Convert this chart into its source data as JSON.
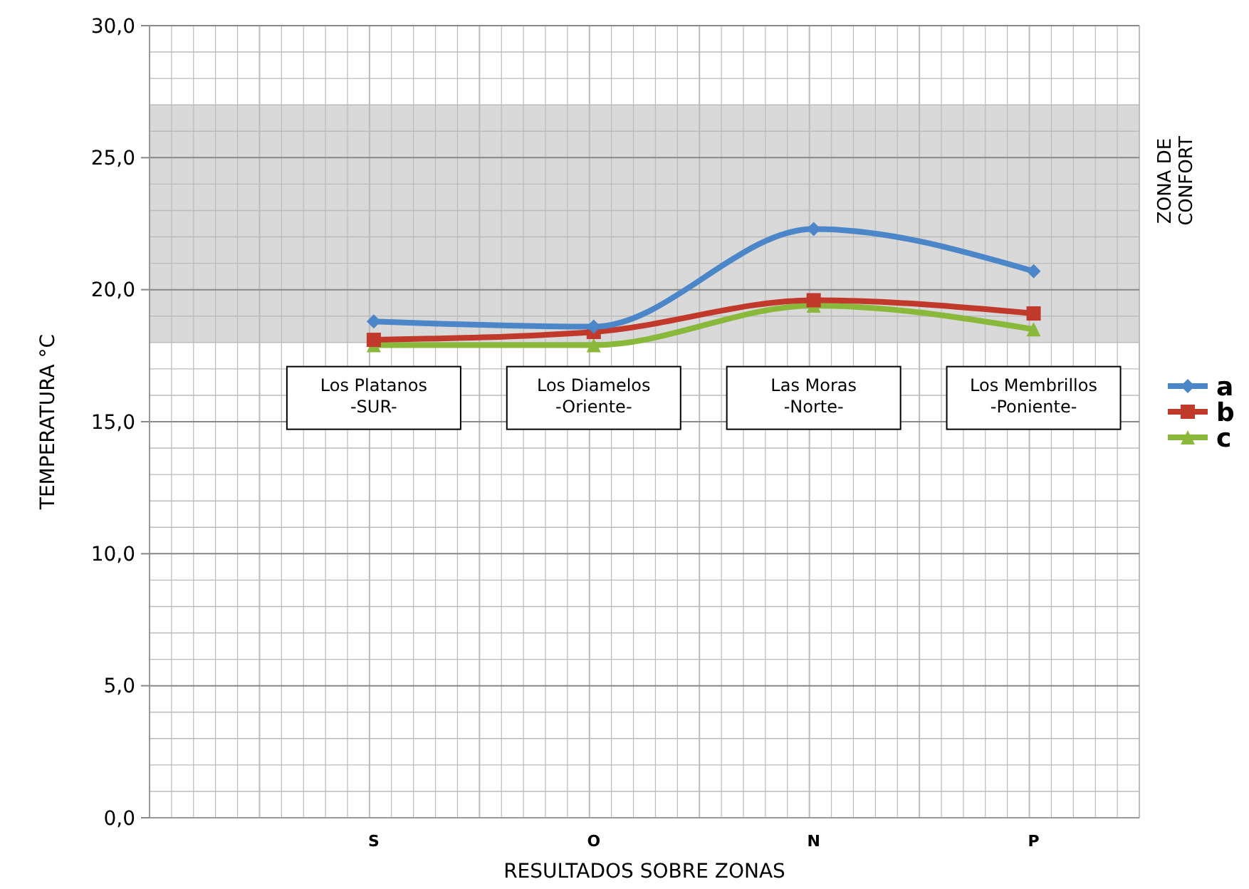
{
  "chart_data": {
    "type": "line",
    "xlabel": "RESULTADOS SOBRE ZONAS",
    "ylabel": "TEMPERATURA °C",
    "categories": [
      "S",
      "O",
      "N",
      "P"
    ],
    "series": [
      {
        "name": "a",
        "color": "#4a86c8",
        "values": [
          18.8,
          18.6,
          22.3,
          20.7
        ],
        "marker": "diamond"
      },
      {
        "name": "b",
        "color": "#c0392b",
        "values": [
          18.1,
          18.4,
          19.6,
          19.1
        ],
        "marker": "square"
      },
      {
        "name": "c",
        "color": "#8ab83a",
        "values": [
          17.9,
          17.9,
          19.4,
          18.5
        ],
        "marker": "triangle"
      }
    ],
    "ylim": [
      0,
      30
    ],
    "yticks": [
      {
        "value": 0,
        "label": "0,0"
      },
      {
        "value": 5,
        "label": "5,0"
      },
      {
        "value": 10,
        "label": "10,0"
      },
      {
        "value": 15,
        "label": "15,0"
      },
      {
        "value": 20,
        "label": "20,0"
      },
      {
        "value": 25,
        "label": "25,0"
      },
      {
        "value": 30,
        "label": "30,0"
      }
    ],
    "bands": [
      {
        "axis": "y",
        "from": 18,
        "to": 27,
        "label": "ZONA DE CONFORT",
        "color": "#d9d9d9"
      }
    ],
    "annotations": [
      "Los Platanos\n-SUR-",
      "Los Diamelos\n-Oriente-",
      "Las Moras\n-Norte-",
      "Los Membrillos\n-Poniente-"
    ],
    "grid": true,
    "legend": "right",
    "line_style": "solid"
  }
}
